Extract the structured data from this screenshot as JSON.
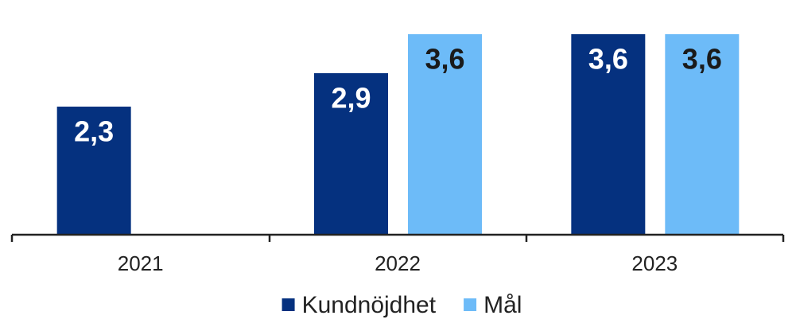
{
  "chart_data": {
    "type": "bar",
    "categories": [
      "2021",
      "2022",
      "2023"
    ],
    "series": [
      {
        "name": "Kundnöjdhet",
        "color": "#05317f",
        "values": [
          2.3,
          2.9,
          3.6
        ],
        "value_labels": [
          "2,3",
          "2,9",
          "3,6"
        ],
        "label_color": "#ffffff"
      },
      {
        "name": "Mål",
        "color": "#6dbbf8",
        "values": [
          null,
          3.6,
          3.6
        ],
        "value_labels": [
          null,
          "3,6",
          "3,6"
        ],
        "label_color": "#1a1a1a"
      }
    ]
  }
}
